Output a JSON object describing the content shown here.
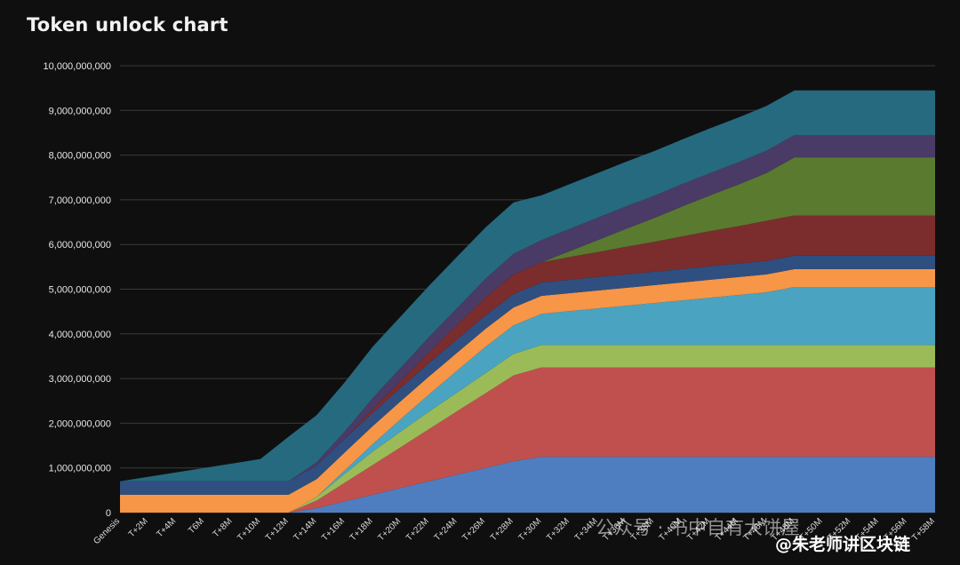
{
  "chart_data": {
    "type": "area",
    "stacked": true,
    "title": "Token unlock chart",
    "xlabel": "",
    "ylabel": "",
    "ylim": [
      0,
      10000000000
    ],
    "yticks": [
      0,
      1000000000,
      2000000000,
      3000000000,
      4000000000,
      5000000000,
      6000000000,
      7000000000,
      8000000000,
      9000000000,
      10000000000
    ],
    "ytick_labels": [
      "0",
      "1,000,000,000",
      "2,000,000,000",
      "3,000,000,000",
      "4,000,000,000",
      "5,000,000,000",
      "6,000,000,000",
      "7,000,000,000",
      "8,000,000,000",
      "9,000,000,000",
      "10,000,000,000"
    ],
    "grid": true,
    "legend": "none",
    "x": [
      "Genesis",
      "T+2M",
      "T+4M",
      "T6M",
      "T+8M",
      "T+10M",
      "T+12M",
      "T+14M",
      "T+16M",
      "T+18M",
      "T+20M",
      "T+22M",
      "T+24M",
      "T+26M",
      "T+28M",
      "T+30M",
      "T+32M",
      "T+34M",
      "T+36M",
      "T+38M",
      "T+40M",
      "T+42M",
      "T+44M",
      "T+46M",
      "T+48M",
      "T+50M",
      "T+52M",
      "T+54M",
      "T+56M",
      "T+58M"
    ],
    "series": [
      {
        "color": "#4e7ec0",
        "values": [
          0,
          0,
          0,
          0,
          0,
          0,
          0,
          100000000,
          250000000,
          400000000,
          550000000,
          700000000,
          850000000,
          1000000000,
          1150000000,
          1250000000,
          1250000000,
          1250000000,
          1250000000,
          1250000000,
          1250000000,
          1250000000,
          1250000000,
          1250000000,
          1250000000,
          1250000000,
          1250000000,
          1250000000,
          1250000000,
          1250000000
        ]
      },
      {
        "color": "#c0504d",
        "values": [
          0,
          0,
          0,
          0,
          0,
          0,
          0,
          170000000,
          420000000,
          670000000,
          920000000,
          1170000000,
          1420000000,
          1670000000,
          1920000000,
          2000000000,
          2000000000,
          2000000000,
          2000000000,
          2000000000,
          2000000000,
          2000000000,
          2000000000,
          2000000000,
          2000000000,
          2000000000,
          2000000000,
          2000000000,
          2000000000,
          2000000000
        ]
      },
      {
        "color": "#9bbb59",
        "values": [
          0,
          0,
          0,
          0,
          0,
          0,
          0,
          80000000,
          200000000,
          300000000,
          350000000,
          390000000,
          420000000,
          450000000,
          480000000,
          500000000,
          500000000,
          500000000,
          500000000,
          500000000,
          500000000,
          500000000,
          500000000,
          500000000,
          500000000,
          500000000,
          500000000,
          500000000,
          500000000,
          500000000
        ]
      },
      {
        "color": "#4aa3c0",
        "values": [
          0,
          0,
          0,
          0,
          0,
          0,
          0,
          0,
          80000000,
          170000000,
          280000000,
          390000000,
          490000000,
          590000000,
          640000000,
          700000000,
          760000000,
          820000000,
          880000000,
          940000000,
          1000000000,
          1060000000,
          1120000000,
          1180000000,
          1300000000,
          1300000000,
          1300000000,
          1300000000,
          1300000000,
          1300000000
        ]
      },
      {
        "color": "#f79646",
        "values": [
          400000000,
          400000000,
          400000000,
          400000000,
          400000000,
          400000000,
          400000000,
          400000000,
          400000000,
          400000000,
          400000000,
          400000000,
          400000000,
          400000000,
          400000000,
          400000000,
          400000000,
          400000000,
          400000000,
          400000000,
          400000000,
          400000000,
          400000000,
          400000000,
          400000000,
          400000000,
          400000000,
          400000000,
          400000000,
          400000000
        ]
      },
      {
        "color": "#2f4f80",
        "values": [
          300000000,
          300000000,
          300000000,
          300000000,
          300000000,
          300000000,
          300000000,
          300000000,
          300000000,
          300000000,
          300000000,
          300000000,
          300000000,
          300000000,
          300000000,
          300000000,
          300000000,
          300000000,
          300000000,
          300000000,
          300000000,
          300000000,
          300000000,
          300000000,
          300000000,
          300000000,
          300000000,
          300000000,
          300000000,
          300000000
        ]
      },
      {
        "color": "#7b2c2c",
        "values": [
          0,
          0,
          0,
          0,
          0,
          0,
          0,
          0,
          0,
          80000000,
          160000000,
          240000000,
          320000000,
          400000000,
          440000000,
          450000000,
          510000000,
          560000000,
          620000000,
          670000000,
          730000000,
          790000000,
          840000000,
          900000000,
          900000000,
          900000000,
          900000000,
          900000000,
          900000000,
          900000000
        ]
      },
      {
        "color": "#5a7a30",
        "values": [
          0,
          0,
          0,
          0,
          0,
          0,
          0,
          0,
          0,
          0,
          0,
          0,
          0,
          0,
          0,
          0,
          130000000,
          270000000,
          400000000,
          530000000,
          670000000,
          800000000,
          930000000,
          1070000000,
          1300000000,
          1300000000,
          1300000000,
          1300000000,
          1300000000,
          1300000000
        ]
      },
      {
        "color": "#4a3a66",
        "values": [
          0,
          0,
          0,
          0,
          0,
          0,
          0,
          80000000,
          170000000,
          250000000,
          290000000,
          340000000,
          380000000,
          420000000,
          460000000,
          500000000,
          500000000,
          500000000,
          500000000,
          500000000,
          500000000,
          500000000,
          500000000,
          500000000,
          500000000,
          500000000,
          500000000,
          500000000,
          500000000,
          500000000
        ]
      },
      {
        "color": "#266a80",
        "values": [
          0,
          100000000,
          200000000,
          300000000,
          400000000,
          500000000,
          1000000000,
          1050000000,
          1100000000,
          1150000000,
          1150000000,
          1150000000,
          1150000000,
          1150000000,
          1150000000,
          1000000000,
          1000000000,
          1000000000,
          1000000000,
          1000000000,
          1000000000,
          1000000000,
          1000000000,
          1000000000,
          1000000000,
          1000000000,
          1000000000,
          1000000000,
          1000000000,
          1000000000
        ]
      }
    ]
  },
  "watermark": {
    "line1": "公众号 · 书中自有大饼屋",
    "line2": "@朱老师讲区块链"
  }
}
